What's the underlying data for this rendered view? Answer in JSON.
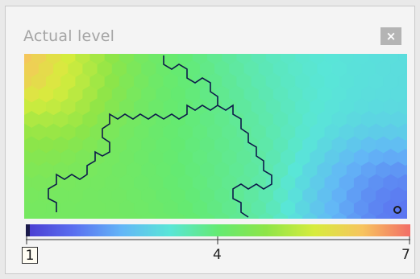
{
  "window": {
    "title": "Actual level",
    "close_label": "×"
  },
  "colors": {
    "background": "#e9e9e9",
    "panel": "#f4f4f4",
    "title_text": "#a5a5a5",
    "close_bg": "#b4b4b4",
    "boundary": "#0d1a4a"
  },
  "scale": {
    "min_label": "1",
    "mid_label": "4",
    "max_label": "7",
    "min": 1,
    "max": 7,
    "gradient": [
      "#4a3bd0",
      "#5a6ff0",
      "#63b6f7",
      "#59e6d7",
      "#64ea72",
      "#8ee548",
      "#d7ec3d",
      "#f7c45e",
      "#f26e67"
    ]
  },
  "map": {
    "type": "hexagonal SOM component plane",
    "variable": "Actual level"
  }
}
